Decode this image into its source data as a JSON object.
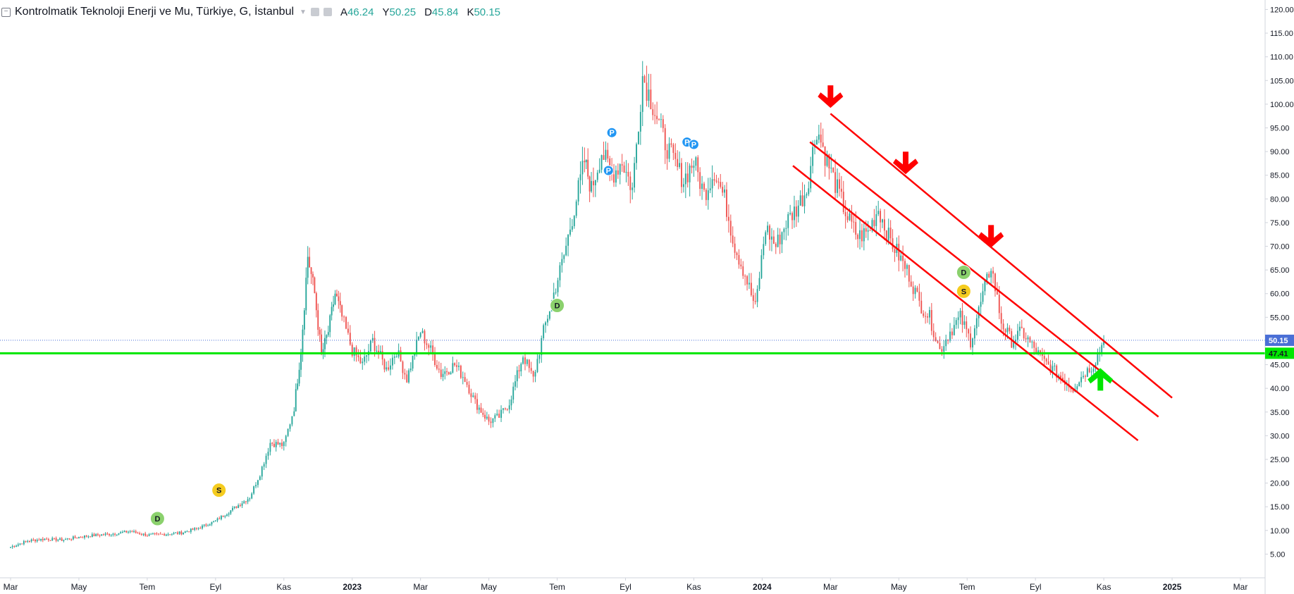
{
  "header": {
    "collapse_icon": "minus-square-icon",
    "title": "Kontrolmatik Teknoloji Enerji ve Mu, Türkiye, G, İstanbul",
    "ohlc": [
      {
        "k": "A",
        "v": "46.24"
      },
      {
        "k": "Y",
        "v": "50.25"
      },
      {
        "k": "D",
        "v": "45.84"
      },
      {
        "k": "K",
        "v": "50.15"
      }
    ]
  },
  "chart_data": {
    "type": "candlestick",
    "y_range": [
      0,
      122
    ],
    "y_ticks": [
      "5.00",
      "10.00",
      "15.00",
      "20.00",
      "25.00",
      "30.00",
      "35.00",
      "40.00",
      "45.00",
      "50.00",
      "55.00",
      "60.00",
      "65.00",
      "70.00",
      "75.00",
      "80.00",
      "85.00",
      "90.00",
      "95.00",
      "100.00",
      "105.00",
      "110.00",
      "115.00",
      "120.00"
    ],
    "x_ticks": [
      {
        "label": "Mar",
        "bold": false
      },
      {
        "label": "May",
        "bold": false
      },
      {
        "label": "Tem",
        "bold": false
      },
      {
        "label": "Eyl",
        "bold": false
      },
      {
        "label": "Kas",
        "bold": false
      },
      {
        "label": "2023",
        "bold": true
      },
      {
        "label": "Mar",
        "bold": false
      },
      {
        "label": "May",
        "bold": false
      },
      {
        "label": "Tem",
        "bold": false
      },
      {
        "label": "Eyl",
        "bold": false
      },
      {
        "label": "Kas",
        "bold": false
      },
      {
        "label": "2024",
        "bold": true
      },
      {
        "label": "Mar",
        "bold": false
      },
      {
        "label": "May",
        "bold": false
      },
      {
        "label": "Tem",
        "bold": false
      },
      {
        "label": "Eyl",
        "bold": false
      },
      {
        "label": "Kas",
        "bold": false
      },
      {
        "label": "2025",
        "bold": true
      },
      {
        "label": "Mar",
        "bold": false
      }
    ],
    "x_range": [
      0,
      36
    ],
    "x_tick_positions": [
      0,
      2,
      4,
      6,
      8,
      10,
      12,
      14,
      16,
      18,
      20,
      22,
      24,
      26,
      28,
      30,
      32,
      34,
      36
    ],
    "close_path": [
      [
        0,
        6.5
      ],
      [
        0.5,
        7.8
      ],
      [
        1,
        8.2
      ],
      [
        1.5,
        8.0
      ],
      [
        2,
        8.6
      ],
      [
        2.5,
        9.0
      ],
      [
        3,
        9.3
      ],
      [
        3.5,
        9.8
      ],
      [
        4,
        9.0
      ],
      [
        4.5,
        9.2
      ],
      [
        5,
        9.5
      ],
      [
        5.5,
        10.5
      ],
      [
        6,
        12.0
      ],
      [
        6.5,
        14.5
      ],
      [
        7,
        17.0
      ],
      [
        7.3,
        22.0
      ],
      [
        7.6,
        28.5
      ],
      [
        8,
        28.0
      ],
      [
        8.3,
        36.0
      ],
      [
        8.5,
        48.0
      ],
      [
        8.7,
        68.0
      ],
      [
        8.9,
        60.0
      ],
      [
        9.1,
        47.0
      ],
      [
        9.3,
        52.0
      ],
      [
        9.5,
        60.0
      ],
      [
        9.7,
        55.0
      ],
      [
        10,
        48.0
      ],
      [
        10.3,
        45.0
      ],
      [
        10.6,
        50.0
      ],
      [
        11,
        44.0
      ],
      [
        11.3,
        48.0
      ],
      [
        11.6,
        42.0
      ],
      [
        12,
        52.0
      ],
      [
        12.3,
        48.0
      ],
      [
        12.6,
        43.0
      ],
      [
        13,
        45.0
      ],
      [
        13.3,
        42.0
      ],
      [
        13.6,
        37.0
      ],
      [
        14,
        33.0
      ],
      [
        14.3,
        34.0
      ],
      [
        14.6,
        37.0
      ],
      [
        15,
        47.0
      ],
      [
        15.3,
        42.0
      ],
      [
        15.6,
        52.0
      ],
      [
        15.9,
        60.0
      ],
      [
        16.2,
        68.0
      ],
      [
        16.5,
        78.0
      ],
      [
        16.8,
        88.0
      ],
      [
        17,
        82.0
      ],
      [
        17.3,
        90.0
      ],
      [
        17.6,
        85.0
      ],
      [
        17.9,
        88.0
      ],
      [
        18.2,
        82.0
      ],
      [
        18.5,
        106.0
      ],
      [
        18.8,
        100.0
      ],
      [
        19.1,
        93.0
      ],
      [
        19.4,
        88.0
      ],
      [
        19.7,
        84.0
      ],
      [
        20,
        88.0
      ],
      [
        20.3,
        81.0
      ],
      [
        20.6,
        86.0
      ],
      [
        20.9,
        80.0
      ],
      [
        21.2,
        70.0
      ],
      [
        21.5,
        64.0
      ],
      [
        21.8,
        57.0
      ],
      [
        22.1,
        74.0
      ],
      [
        22.4,
        70.0
      ],
      [
        22.7,
        75.0
      ],
      [
        23,
        78.0
      ],
      [
        23.3,
        82.0
      ],
      [
        23.6,
        95.0
      ],
      [
        23.9,
        88.0
      ],
      [
        24.2,
        82.0
      ],
      [
        24.5,
        76.0
      ],
      [
        24.8,
        72.0
      ],
      [
        25.1,
        73.0
      ],
      [
        25.4,
        78.0
      ],
      [
        25.7,
        72.0
      ],
      [
        26,
        68.0
      ],
      [
        26.3,
        64.0
      ],
      [
        26.6,
        58.0
      ],
      [
        26.9,
        55.0
      ],
      [
        27.2,
        48.0
      ],
      [
        27.5,
        52.0
      ],
      [
        27.8,
        55.0
      ],
      [
        28.1,
        50.0
      ],
      [
        28.4,
        58.0
      ],
      [
        28.7,
        66.0
      ],
      [
        29,
        54.0
      ],
      [
        29.3,
        50.0
      ],
      [
        29.6,
        52.0
      ],
      [
        29.9,
        49.0
      ],
      [
        30.2,
        46.0
      ],
      [
        30.5,
        44.0
      ],
      [
        30.8,
        42.0
      ],
      [
        31.1,
        40.0
      ],
      [
        31.4,
        43.0
      ],
      [
        31.7,
        45.0
      ],
      [
        32,
        50.15
      ]
    ],
    "last_price": "50.15",
    "support_level": "47.41",
    "channel_lines": [
      {
        "from": [
          24.0,
          98.0
        ],
        "to": [
          34.0,
          38.0
        ]
      },
      {
        "from": [
          23.4,
          92.0
        ],
        "to": [
          33.6,
          34.0
        ]
      },
      {
        "from": [
          22.9,
          87.0
        ],
        "to": [
          33.0,
          29.0
        ]
      }
    ],
    "down_arrows": [
      [
        24.0,
        101.0
      ],
      [
        26.2,
        87.0
      ],
      [
        28.7,
        71.5
      ]
    ],
    "up_arrow": [
      31.9,
      42.5
    ],
    "markers": [
      {
        "label": "D",
        "x": 4.3,
        "y": 12.5,
        "color": "#8bd16d"
      },
      {
        "label": "S",
        "x": 6.1,
        "y": 18.5,
        "color": "#f5cc1f"
      },
      {
        "label": "D",
        "x": 16.0,
        "y": 57.5,
        "color": "#8bd16d"
      },
      {
        "label": "P",
        "x": 17.6,
        "y": 94.0,
        "color": "#2196f3"
      },
      {
        "label": "P",
        "x": 17.5,
        "y": 86.0,
        "color": "#2196f3"
      },
      {
        "label": "P",
        "x": 19.8,
        "y": 92.0,
        "color": "#2196f3"
      },
      {
        "label": "P",
        "x": 20.0,
        "y": 91.5,
        "color": "#2196f3"
      },
      {
        "label": "D",
        "x": 27.9,
        "y": 64.5,
        "color": "#8bd16d"
      },
      {
        "label": "S",
        "x": 27.9,
        "y": 60.5,
        "color": "#f5cc1f"
      }
    ],
    "colors": {
      "up": "#26a69a",
      "down": "#ef5350",
      "channel": "#ff0000",
      "support": "#00e600",
      "last_price_bg": "#4a6fd6"
    }
  }
}
